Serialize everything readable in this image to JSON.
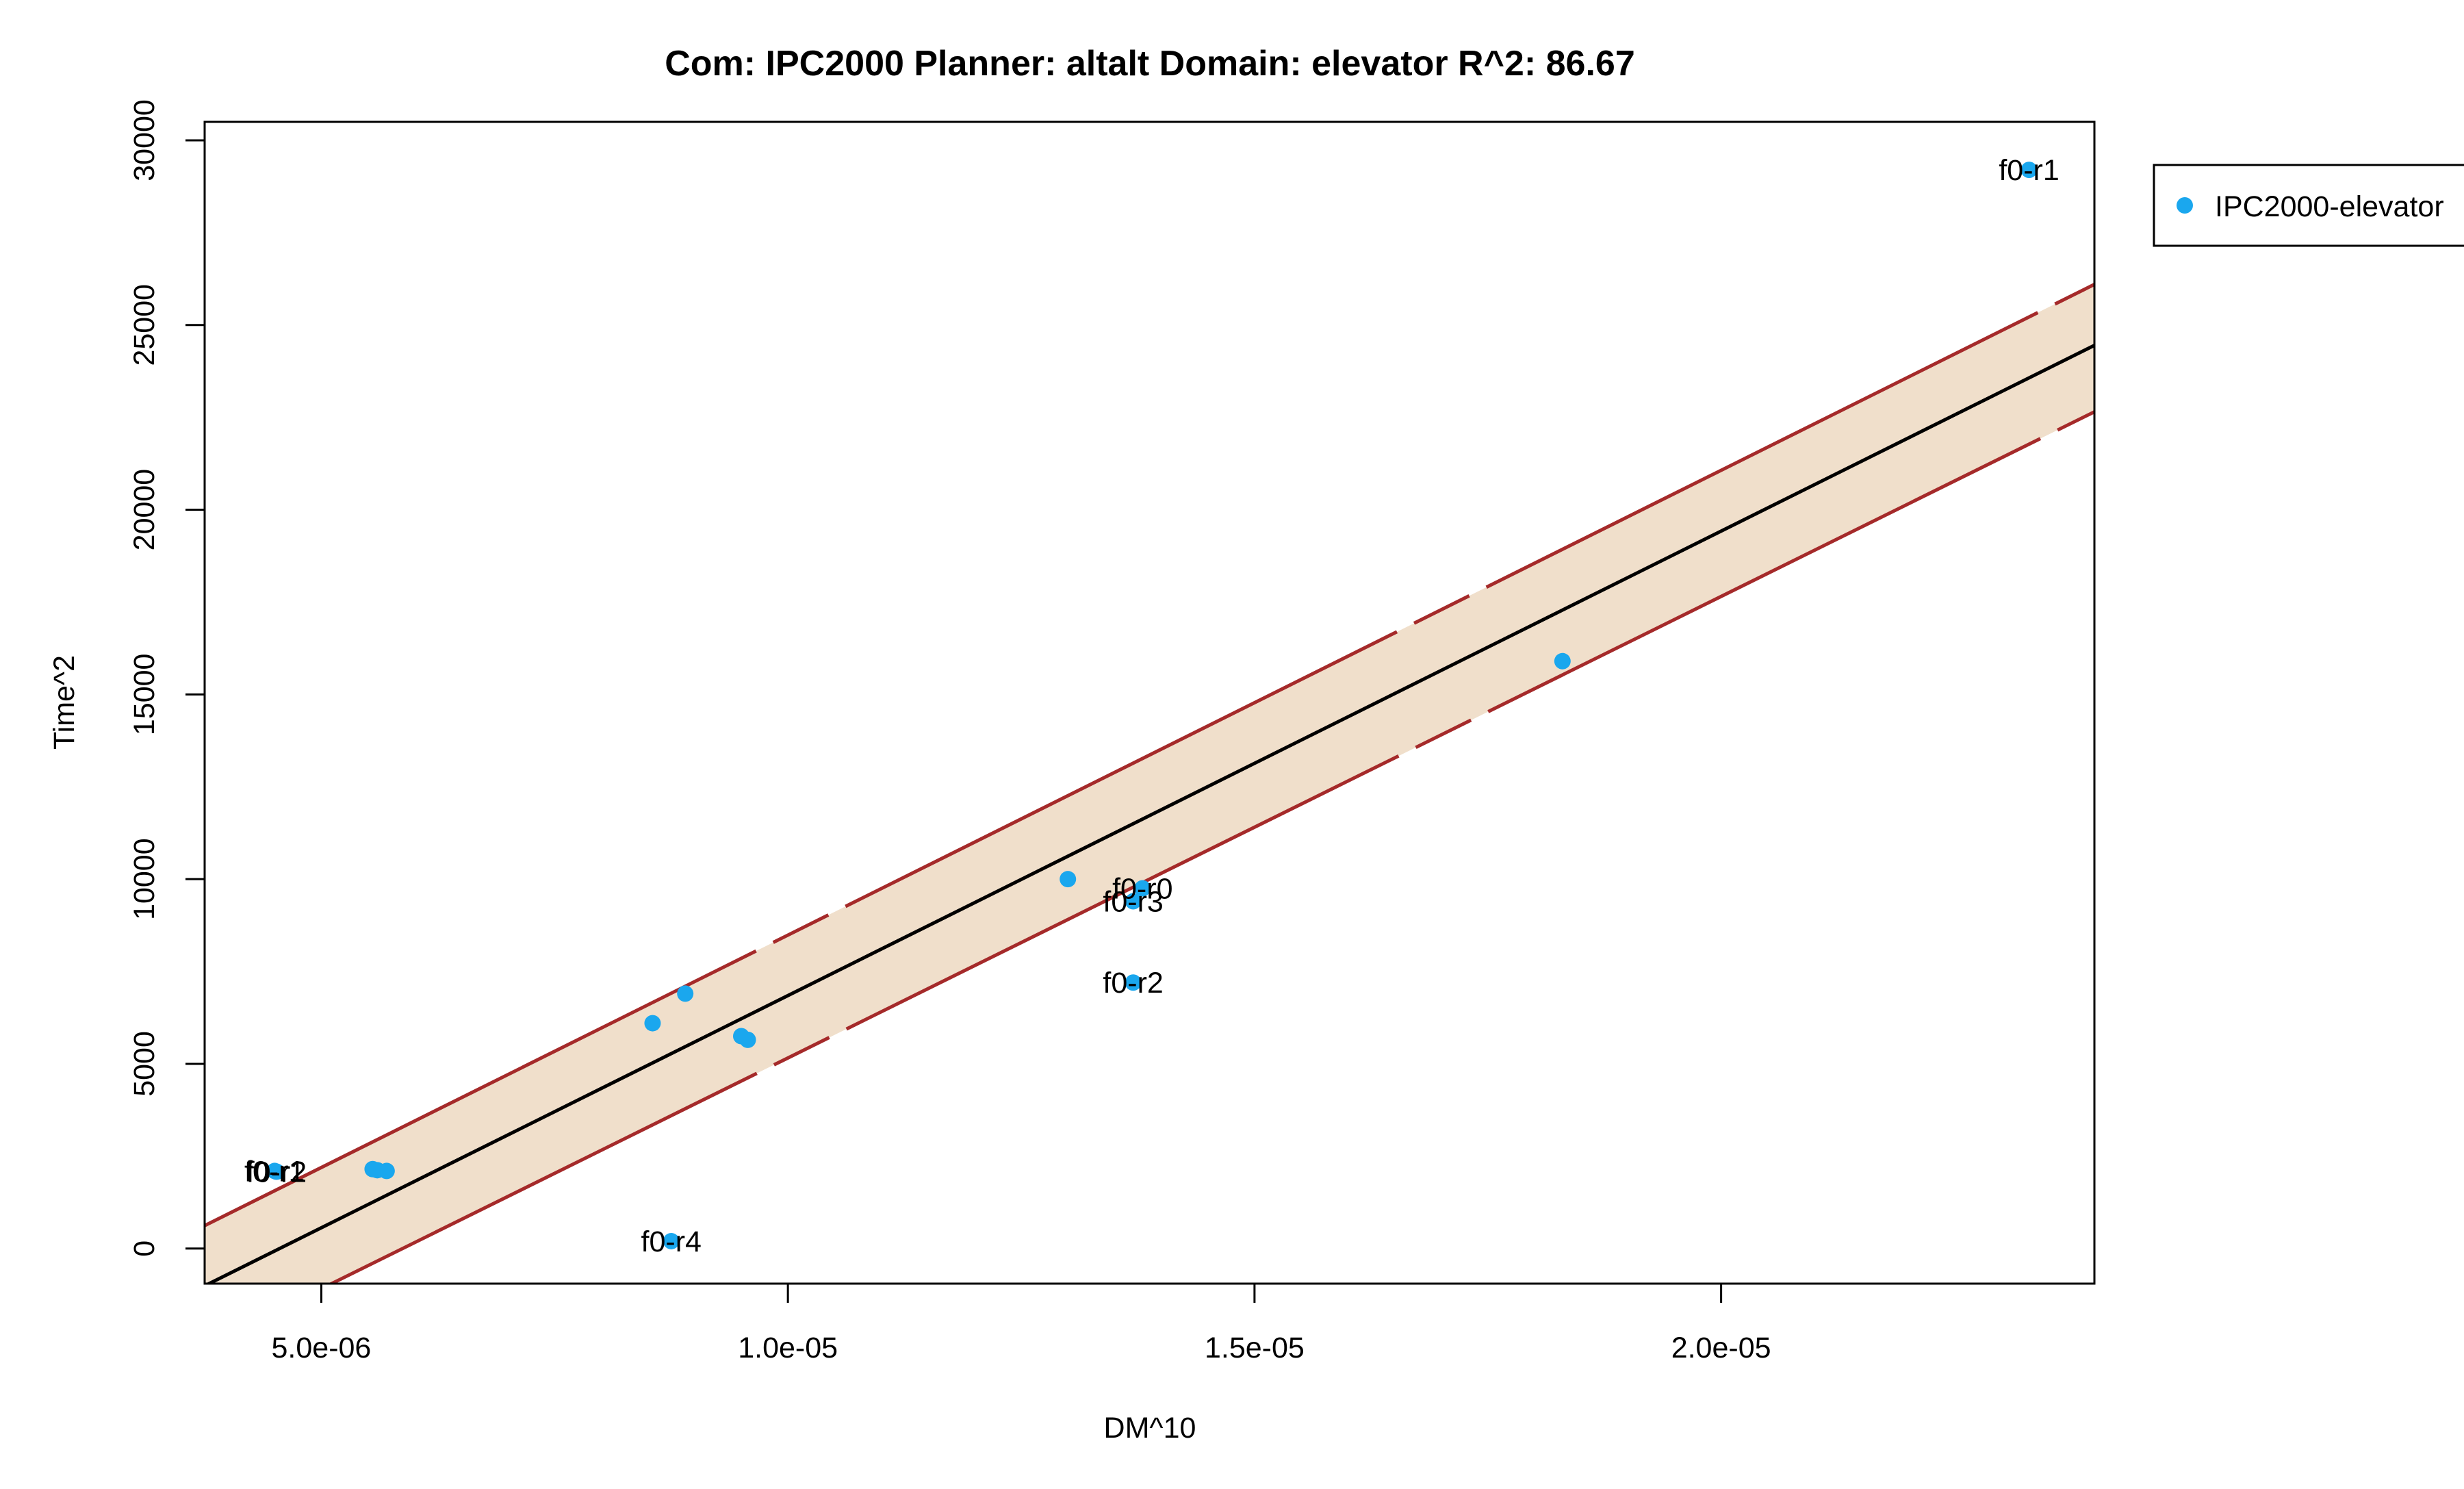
{
  "chart_data": {
    "type": "scatter",
    "title": "Com: IPC2000 Planner: altalt Domain: elevator R^2: 86.67",
    "xlabel": "DM^10",
    "ylabel": "Time^2",
    "xlim": [
      3.75e-06,
      2.4e-05
    ],
    "ylim": [
      -950,
      30500
    ],
    "x_ticks": [
      {
        "value": 5e-06,
        "label": "5.0e-06"
      },
      {
        "value": 1e-05,
        "label": "1.0e-05"
      },
      {
        "value": 1.5e-05,
        "label": "1.5e-05"
      },
      {
        "value": 2e-05,
        "label": "2.0e-05"
      }
    ],
    "y_ticks": [
      {
        "value": 0,
        "label": "0"
      },
      {
        "value": 5000,
        "label": "5000"
      },
      {
        "value": 10000,
        "label": "10000"
      },
      {
        "value": 15000,
        "label": "15000"
      },
      {
        "value": 20000,
        "label": "20000"
      },
      {
        "value": 25000,
        "label": "25000"
      },
      {
        "value": 30000,
        "label": "30000"
      }
    ],
    "series": [
      {
        "name": "IPC2000-elevator",
        "color": "#1aa7ee",
        "points": [
          {
            "x": 4.5e-06,
            "y": 2100,
            "label": "f0-r1"
          },
          {
            "x": 4.52e-06,
            "y": 2080,
            "label": "f0-r2"
          },
          {
            "x": 5.55e-06,
            "y": 2150
          },
          {
            "x": 5.6e-06,
            "y": 2120
          },
          {
            "x": 5.7e-06,
            "y": 2100
          },
          {
            "x": 8.55e-06,
            "y": 6100
          },
          {
            "x": 8.75e-06,
            "y": 200,
            "label": "f0-r4"
          },
          {
            "x": 8.9e-06,
            "y": 6900
          },
          {
            "x": 9.5e-06,
            "y": 5750
          },
          {
            "x": 9.57e-06,
            "y": 5650
          },
          {
            "x": 1.3e-05,
            "y": 10000
          },
          {
            "x": 1.38e-05,
            "y": 9750,
            "label": "f0-r0"
          },
          {
            "x": 1.37e-05,
            "y": 9400,
            "label": "f0-r3"
          },
          {
            "x": 1.37e-05,
            "y": 7200,
            "label": "f0-r2"
          },
          {
            "x": 1.83e-05,
            "y": 15900
          },
          {
            "x": 2.33e-05,
            "y": 29200,
            "label": "f0-r1"
          }
        ]
      }
    ],
    "regression": {
      "line": [
        [
          3.75e-06,
          -1010
        ],
        [
          2.4e-05,
          24450
        ]
      ],
      "upper": [
        [
          3.75e-06,
          620
        ],
        [
          2.4e-05,
          26100
        ]
      ],
      "lower": [
        [
          3.75e-06,
          -2650
        ],
        [
          2.4e-05,
          22650
        ]
      ],
      "line_color": "#000000",
      "band_color": "#a52a2a",
      "fill_color": "#f0dfcb"
    },
    "legend": {
      "position": "top-right, outside plot",
      "entries": [
        {
          "label": "IPC2000-elevator",
          "color": "#1aa7ee"
        }
      ]
    },
    "grid": false
  }
}
